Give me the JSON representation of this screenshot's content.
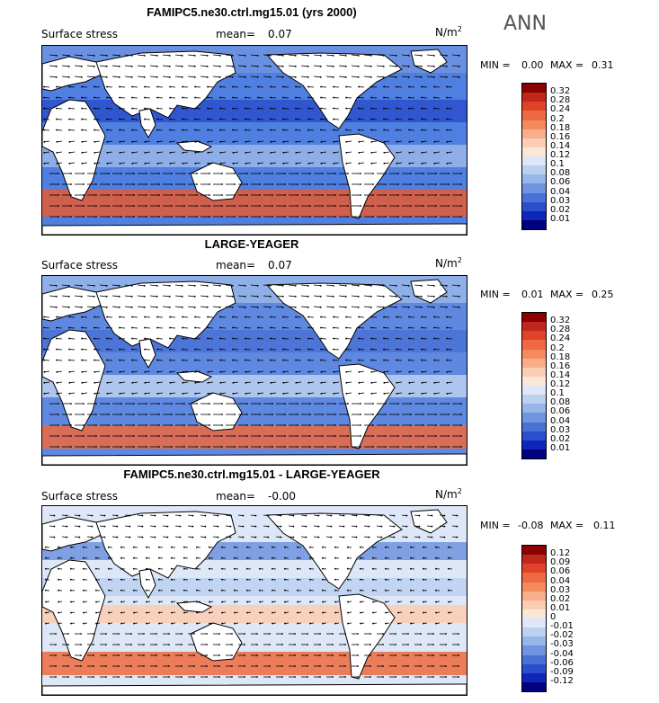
{
  "season": "ANN",
  "panels": [
    {
      "title": "FAMIPC5.ne30.ctrl.mg15.01 (yrs 2000)",
      "variable": "Surface stress",
      "mean_label": "mean=",
      "mean": "0.07",
      "units": "N/m",
      "units_exp": "2",
      "min_label": "MIN =",
      "min": "0.00",
      "max_label": "MAX =",
      "max": "0.31",
      "colorbar": {
        "labels": [
          "0.32",
          "0.28",
          "0.24",
          "0.2",
          "0.18",
          "0.16",
          "0.14",
          "0.12",
          "0.1",
          "0.08",
          "0.06",
          "0.04",
          "0.03",
          "0.02",
          "0.01"
        ],
        "colors": [
          "#8b0000",
          "#c0281b",
          "#e0432a",
          "#ef6a40",
          "#f58a5d",
          "#f9ad8a",
          "#fbcdb2",
          "#fbe7da",
          "#dde7f7",
          "#bcd0f0",
          "#98b6ea",
          "#6f94e0",
          "#4a72d6",
          "#2a4fcc",
          "#1026b8",
          "#000080"
        ]
      }
    },
    {
      "title": "LARGE-YEAGER",
      "variable": "Surface stress",
      "mean_label": "mean=",
      "mean": "0.07",
      "units": "N/m",
      "units_exp": "2",
      "min_label": "MIN =",
      "min": "0.01",
      "max_label": "MAX =",
      "max": "0.25",
      "colorbar": {
        "labels": [
          "0.32",
          "0.28",
          "0.24",
          "0.2",
          "0.18",
          "0.16",
          "0.14",
          "0.12",
          "0.1",
          "0.08",
          "0.06",
          "0.04",
          "0.03",
          "0.02",
          "0.01"
        ],
        "colors": [
          "#8b0000",
          "#c0281b",
          "#e0432a",
          "#ef6a40",
          "#f58a5d",
          "#f9ad8a",
          "#fbcdb2",
          "#fbe7da",
          "#dde7f7",
          "#bcd0f0",
          "#98b6ea",
          "#6f94e0",
          "#4a72d6",
          "#2a4fcc",
          "#1026b8",
          "#000080"
        ]
      }
    },
    {
      "title": "FAMIPC5.ne30.ctrl.mg15.01 - LARGE-YEAGER",
      "variable": "Surface stress",
      "mean_label": "mean=",
      "mean": "-0.00",
      "units": "N/m",
      "units_exp": "2",
      "min_label": "MIN =",
      "min": "-0.08",
      "max_label": "MAX =",
      "max": "0.11",
      "colorbar": {
        "labels": [
          "0.12",
          "0.09",
          "0.06",
          "0.04",
          "0.03",
          "0.02",
          "0.01",
          "0",
          "-0.01",
          "-0.02",
          "-0.03",
          "-0.04",
          "-0.06",
          "-0.09",
          "-0.12"
        ],
        "colors": [
          "#8b0000",
          "#c0281b",
          "#e0432a",
          "#ef6a40",
          "#f58a5d",
          "#f9ad8a",
          "#fbcdb2",
          "#fbe7da",
          "#dde7f7",
          "#bcd0f0",
          "#98b6ea",
          "#6f94e0",
          "#4a72d6",
          "#2a4fcc",
          "#1026b8",
          "#000080"
        ]
      }
    }
  ],
  "chart_data": [
    {
      "type": "heatmap",
      "title": "FAMIPC5.ne30.ctrl.mg15.01 (yrs 2000)",
      "variable": "Surface stress",
      "units": "N/m2",
      "mean": 0.07,
      "min": 0.0,
      "max": 0.31,
      "levels": [
        0.01,
        0.02,
        0.03,
        0.04,
        0.06,
        0.08,
        0.1,
        0.12,
        0.14,
        0.16,
        0.18,
        0.2,
        0.24,
        0.28,
        0.32
      ],
      "overlay": "wind stress vectors"
    },
    {
      "type": "heatmap",
      "title": "LARGE-YEAGER",
      "variable": "Surface stress",
      "units": "N/m2",
      "mean": 0.07,
      "min": 0.01,
      "max": 0.25,
      "levels": [
        0.01,
        0.02,
        0.03,
        0.04,
        0.06,
        0.08,
        0.1,
        0.12,
        0.14,
        0.16,
        0.18,
        0.2,
        0.24,
        0.28,
        0.32
      ],
      "overlay": "wind stress vectors"
    },
    {
      "type": "heatmap",
      "title": "FAMIPC5.ne30.ctrl.mg15.01 - LARGE-YEAGER",
      "variable": "Surface stress",
      "units": "N/m2",
      "mean": -0.0,
      "min": -0.08,
      "max": 0.11,
      "levels": [
        -0.12,
        -0.09,
        -0.06,
        -0.04,
        -0.03,
        -0.02,
        -0.01,
        0,
        0.01,
        0.02,
        0.03,
        0.04,
        0.06,
        0.09,
        0.12
      ],
      "overlay": "wind stress difference vectors"
    }
  ]
}
